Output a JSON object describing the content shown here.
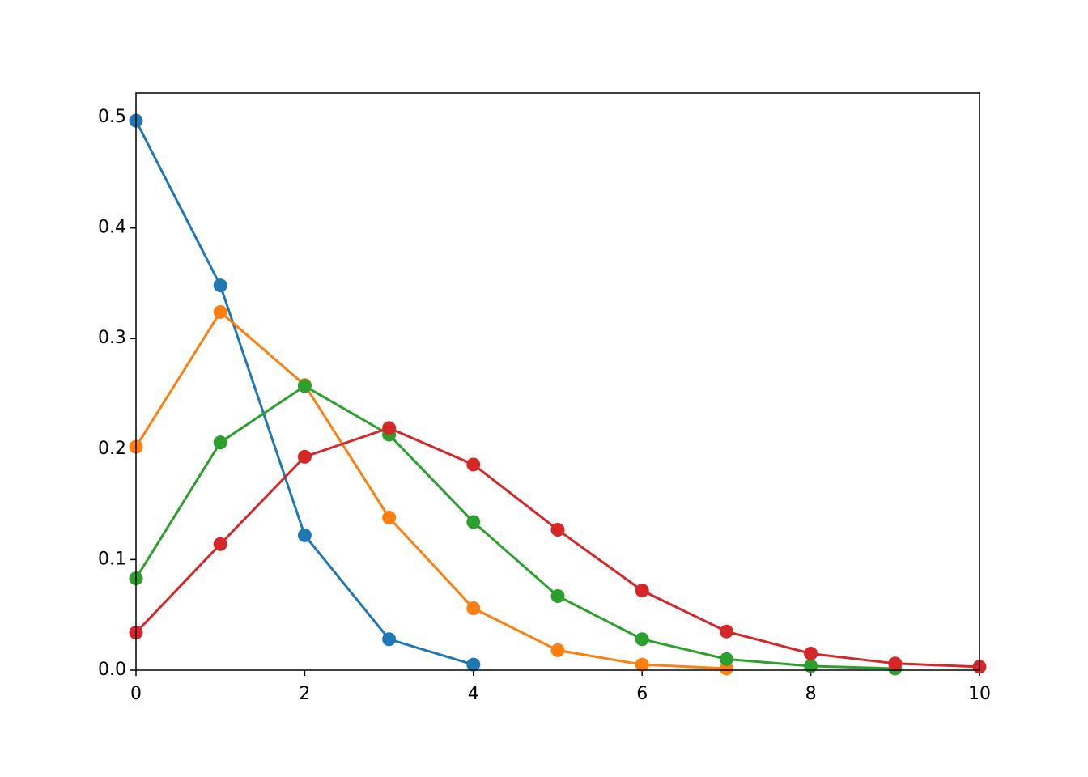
{
  "chart_data": {
    "type": "line",
    "xlim": [
      0,
      10
    ],
    "ylim": [
      0,
      0.522
    ],
    "xticks": [
      0,
      2,
      4,
      6,
      8,
      10
    ],
    "yticks": [
      {
        "value": 0,
        "label": "0.0"
      },
      0.1,
      0.2,
      0.3,
      0.4,
      0.5
    ],
    "grid": false,
    "series": [
      {
        "color": "#1f77b4",
        "x": [
          0,
          1,
          2,
          3,
          4
        ],
        "values": [
          0.497,
          0.348,
          0.122,
          0.028,
          0.005
        ]
      },
      {
        "color": "#ff7f0e",
        "x": [
          0,
          1,
          2,
          3,
          4,
          5,
          6,
          7
        ],
        "values": [
          0.202,
          0.324,
          0.258,
          0.138,
          0.056,
          0.018,
          0.005,
          0.0015
        ]
      },
      {
        "color": "#2ca02c",
        "x": [
          0,
          1,
          2,
          3,
          4,
          5,
          6,
          7,
          8,
          9
        ],
        "values": [
          0.083,
          0.206,
          0.257,
          0.213,
          0.134,
          0.067,
          0.028,
          0.01,
          0.0037,
          0.0015
        ]
      },
      {
        "color": "#d62728",
        "x": [
          0,
          1,
          2,
          3,
          4,
          5,
          6,
          7,
          8,
          9,
          10
        ],
        "values": [
          0.034,
          0.114,
          0.193,
          0.219,
          0.186,
          0.127,
          0.072,
          0.035,
          0.015,
          0.006,
          0.003
        ]
      }
    ]
  }
}
